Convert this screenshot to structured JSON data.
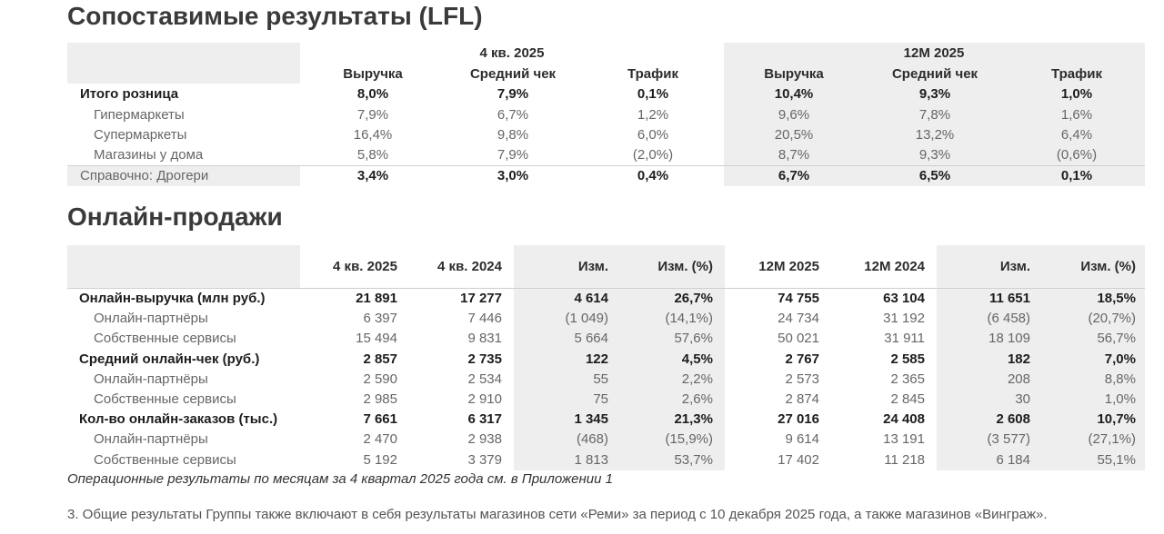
{
  "lfl": {
    "title": "Сопоставимые результаты (LFL)",
    "period_q4": "4 кв. 2025",
    "period_12m": "12М 2025",
    "columns": [
      "Выручка",
      "Средний чек",
      "Трафик",
      "Выручка",
      "Средний чек",
      "Трафик"
    ],
    "rows": [
      {
        "label": "Итого розница",
        "bold": true,
        "values": [
          "8,0%",
          "7,9%",
          "0,1%",
          "10,4%",
          "9,3%",
          "1,0%"
        ]
      },
      {
        "label": "Гипермаркеты",
        "bold": false,
        "values": [
          "7,9%",
          "6,7%",
          "1,2%",
          "9,6%",
          "7,8%",
          "1,6%"
        ]
      },
      {
        "label": "Супермаркеты",
        "bold": false,
        "values": [
          "16,4%",
          "9,8%",
          "6,0%",
          "20,5%",
          "13,2%",
          "6,4%"
        ]
      },
      {
        "label": "Магазины у дома",
        "bold": false,
        "values": [
          "5,8%",
          "7,9%",
          "(2,0%)",
          "8,7%",
          "9,3%",
          "(0,6%)"
        ]
      },
      {
        "label": "Справочно: Дрогери",
        "bold": false,
        "values": [
          "3,4%",
          "3,0%",
          "0,4%",
          "6,7%",
          "6,5%",
          "0,1%"
        ]
      }
    ]
  },
  "online": {
    "title": "Онлайн-продажи",
    "columns": [
      "4 кв. 2025",
      "4 кв. 2024",
      "Изм.",
      "Изм. (%)",
      "12М 2025",
      "12М 2024",
      "Изм.",
      "Изм. (%)"
    ],
    "rows": [
      {
        "label": "Онлайн-выручка (млн руб.)",
        "bold": true,
        "values": [
          "21 891",
          "17 277",
          "4 614",
          "26,7%",
          "74 755",
          "63 104",
          "11 651",
          "18,5%"
        ]
      },
      {
        "label": "Онлайн-партнёры",
        "bold": false,
        "values": [
          "6 397",
          "7 446",
          "(1 049)",
          "(14,1%)",
          "24 734",
          "31 192",
          "(6 458)",
          "(20,7%)"
        ]
      },
      {
        "label": "Собственные сервисы",
        "bold": false,
        "values": [
          "15 494",
          "9 831",
          "5 664",
          "57,6%",
          "50 021",
          "31 911",
          "18 109",
          "56,7%"
        ]
      },
      {
        "label": "Средний онлайн-чек (руб.)",
        "bold": true,
        "values": [
          "2 857",
          "2 735",
          "122",
          "4,5%",
          "2 767",
          "2 585",
          "182",
          "7,0%"
        ]
      },
      {
        "label": "Онлайн-партнёры",
        "bold": false,
        "values": [
          "2 590",
          "2 534",
          "55",
          "2,2%",
          "2 573",
          "2 365",
          "208",
          "8,8%"
        ]
      },
      {
        "label": "Собственные сервисы",
        "bold": false,
        "values": [
          "2 985",
          "2 910",
          "75",
          "2,6%",
          "2 874",
          "2 845",
          "30",
          "1,0%"
        ]
      },
      {
        "label": "Кол-во онлайн-заказов (тыс.)",
        "bold": true,
        "values": [
          "7 661",
          "6 317",
          "1 345",
          "21,3%",
          "27 016",
          "24 408",
          "2 608",
          "10,7%"
        ]
      },
      {
        "label": "Онлайн-партнёры",
        "bold": false,
        "values": [
          "2 470",
          "2 938",
          "(468)",
          "(15,9%)",
          "9 614",
          "13 191",
          "(3 577)",
          "(27,1%)"
        ]
      },
      {
        "label": "Собственные сервисы",
        "bold": false,
        "values": [
          "5 192",
          "3 379",
          "1 813",
          "53,7%",
          "17 402",
          "11 218",
          "6 184",
          "55,1%"
        ]
      }
    ]
  },
  "footnotes": {
    "operational": "Операционные результаты по месяцам за 4 квартал 2025 года см. в Приложении 1",
    "note3": "3. Общие результаты Группы также включают в себя результаты магазинов сети «Реми» за период с 10 декабря 2025 года, а также магазинов «Винграж»."
  }
}
